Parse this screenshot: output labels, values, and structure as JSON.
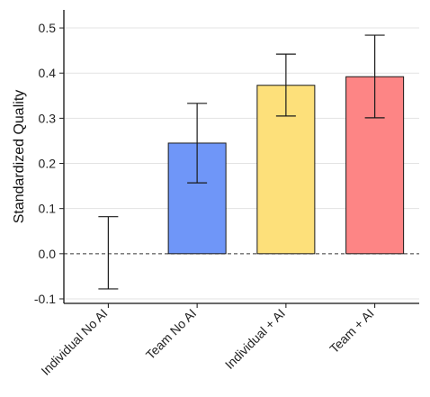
{
  "chart_data": {
    "type": "bar",
    "title": "",
    "xlabel": "",
    "ylabel": "Standardized Quality",
    "categories": [
      "Individual No AI",
      "Team No AI",
      "Individual + AI",
      "Team + AI"
    ],
    "values": [
      0.0,
      0.245,
      0.373,
      0.392
    ],
    "error_low": [
      -0.078,
      0.157,
      0.305,
      0.301
    ],
    "error_high": [
      0.082,
      0.333,
      0.442,
      0.484
    ],
    "bar_colors": [
      "#ffffff",
      "#6f96f8",
      "#fde07a",
      "#fd8585"
    ],
    "ylim": [
      -0.11,
      0.54
    ],
    "yticks": [
      -0.1,
      0.0,
      0.1,
      0.2,
      0.3,
      0.4,
      0.5
    ],
    "ytick_labels": [
      "-0.1",
      "0.0",
      "0.1",
      "0.2",
      "0.3",
      "0.4",
      "0.5"
    ],
    "grid": "horizontal",
    "zero_reference_line": "dashed",
    "legend": "none"
  }
}
